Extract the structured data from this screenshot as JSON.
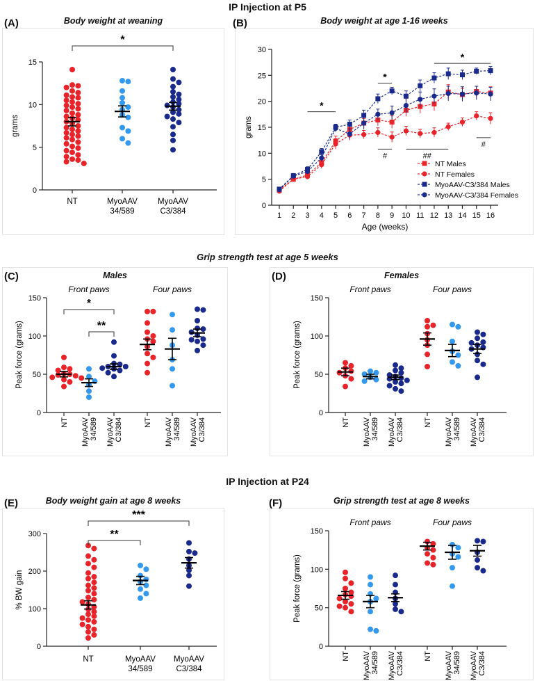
{
  "figure": {
    "title_top": "IP Injection at P5",
    "title_grip5": "Grip strength test at age 5 weeks",
    "title_p24": "IP Injection at P24"
  },
  "colors": {
    "nt": "#e8242a",
    "myo34": "#3399ee",
    "myoC3": "#1a2a8c",
    "axis": "#222222"
  },
  "chart_data": [
    {
      "id": "A",
      "label": "(A)",
      "type": "scatter",
      "title": "Body weight at weaning",
      "xlabel": "",
      "ylabel": "grams",
      "ylim": [
        0,
        15
      ],
      "yticks": [
        0,
        5,
        10,
        15
      ],
      "categories": [
        "NT",
        "MyoAAV\n34/589",
        "MyoAAV\nC3/384"
      ],
      "colors": [
        "nt",
        "myo34",
        "myoC3"
      ],
      "means": [
        8.0,
        9.2,
        9.8
      ],
      "sems": [
        0.5,
        0.65,
        0.45
      ],
      "points": [
        [
          14.1,
          12.3,
          12.2,
          12.0,
          11.6,
          11.4,
          11.1,
          10.9,
          10.8,
          10.5,
          10.3,
          10.1,
          9.9,
          9.7,
          9.5,
          9.3,
          9.0,
          8.8,
          8.6,
          8.4,
          8.2,
          8.0,
          7.8,
          7.5,
          7.3,
          7.1,
          6.9,
          6.7,
          6.5,
          6.3,
          6.1,
          5.9,
          5.6,
          5.4,
          5.1,
          4.9,
          4.6,
          4.4,
          4.1,
          3.9,
          3.6,
          3.3,
          3.1,
          3.5
        ],
        [
          12.8,
          12.7,
          11.6,
          10.8,
          10.2,
          9.7,
          9.4,
          8.8,
          8.5,
          7.3,
          6.9,
          6.0,
          5.5
        ],
        [
          14.1,
          13.0,
          12.6,
          12.1,
          11.5,
          11.2,
          10.9,
          10.6,
          10.3,
          10.1,
          9.9,
          9.7,
          9.4,
          9.1,
          8.9,
          8.6,
          8.3,
          7.9,
          7.4,
          6.5,
          5.8,
          4.7
        ]
      ],
      "sig": [
        {
          "from": 0,
          "to": 2,
          "label": "*"
        }
      ]
    },
    {
      "id": "B",
      "label": "(B)",
      "type": "line",
      "title": "Body weight at age 1-16 weeks",
      "xlabel": "Age (weeks)",
      "ylabel": "grams",
      "ylim": [
        0,
        30
      ],
      "yticks": [
        0,
        5,
        10,
        15,
        20,
        25,
        30
      ],
      "x": [
        1,
        2,
        3,
        4,
        5,
        6,
        7,
        8,
        9,
        10,
        11,
        12,
        13,
        14,
        15,
        16
      ],
      "series": [
        {
          "name": "NT Males",
          "color": "nt",
          "marker": "square",
          "values": [
            2.9,
            5.0,
            5.8,
            8.2,
            12.3,
            14.6,
            15.8,
            16.4,
            16.0,
            18.3,
            19.0,
            19.5,
            21.8,
            21.3,
            21.9,
            21.6
          ],
          "errors": [
            0.3,
            0.4,
            0.5,
            0.8,
            1.0,
            1.0,
            0.9,
            1.1,
            1.2,
            1.2,
            1.3,
            1.3,
            1.4,
            1.2,
            1.0,
            1.2
          ]
        },
        {
          "name": "NT Females",
          "color": "nt",
          "marker": "circle",
          "values": [
            2.7,
            5.0,
            5.5,
            7.8,
            11.8,
            13.5,
            13.6,
            14.0,
            13.1,
            14.3,
            13.8,
            14.0,
            15.1,
            16.0,
            17.2,
            16.7
          ],
          "errors": [
            0.3,
            0.4,
            0.5,
            0.7,
            1.0,
            1.0,
            0.8,
            0.9,
            1.0,
            0.9,
            0.8,
            0.9,
            0.7,
            0.8,
            0.8,
            1.1
          ]
        },
        {
          "name": "MyoAAV-C3/384 Males",
          "color": "myoC3",
          "marker": "square",
          "values": [
            3.1,
            5.7,
            6.9,
            10.3,
            15.0,
            15.6,
            17.3,
            20.5,
            22.0,
            21.0,
            23.0,
            24.5,
            25.3,
            25.1,
            25.8,
            25.9
          ],
          "errors": [
            0.3,
            0.4,
            0.5,
            0.6,
            0.6,
            0.8,
            1.0,
            0.9,
            0.7,
            1.0,
            1.1,
            1.0,
            1.1,
            0.9,
            0.6,
            0.8
          ]
        },
        {
          "name": "MyoAAV-C3/384 Females",
          "color": "myoC3",
          "marker": "circle",
          "values": [
            3.0,
            5.6,
            6.5,
            9.1,
            14.8,
            13.7,
            15.8,
            17.5,
            17.8,
            19.2,
            20.4,
            21.0,
            21.5,
            21.4,
            21.6,
            21.4
          ],
          "errors": [
            0.3,
            0.4,
            0.5,
            0.6,
            0.7,
            1.0,
            1.2,
            1.0,
            1.3,
            1.4,
            1.4,
            1.4,
            1.4,
            1.4,
            1.3,
            1.3
          ]
        }
      ],
      "annotations": [
        {
          "label": "*",
          "x1": 3,
          "x2": 5,
          "y": 18.0,
          "above": true
        },
        {
          "label": "*",
          "x1": 8,
          "x2": 9,
          "y": 23.5,
          "above": true
        },
        {
          "label": "*",
          "x1": 12,
          "x2": 16,
          "y": 27.3,
          "above": true
        },
        {
          "label": "#",
          "x1": 8,
          "x2": 9,
          "y": 10.8,
          "above": false
        },
        {
          "label": "##",
          "x1": 10,
          "x2": 13,
          "y": 10.8,
          "above": false
        },
        {
          "label": "#",
          "x1": 15,
          "x2": 16,
          "y": 13.0,
          "above": false
        }
      ],
      "legend_position": "bottom-right"
    },
    {
      "id": "C",
      "label": "(C)",
      "type": "scatter",
      "title": "Males",
      "ylabel": "Peak force (grams)",
      "ylim": [
        0,
        150
      ],
      "yticks": [
        0,
        50,
        100,
        150
      ],
      "group_labels": [
        "Front paws",
        "Four paws"
      ],
      "categories": [
        "NT",
        "MyoAAV\n34/589",
        "MyoAAV\nC3/384",
        "NT",
        "MyoAAV\n34/589",
        "MyoAAV\nC3/384"
      ],
      "colors": [
        "nt",
        "myo34",
        "myoC3",
        "nt",
        "myo34",
        "myoC3"
      ],
      "means": [
        50,
        39,
        60,
        89,
        83,
        104
      ],
      "sems": [
        3.5,
        5,
        3.5,
        7,
        14,
        5
      ],
      "points": [
        [
          72,
          59,
          57,
          55,
          51,
          50,
          49,
          48,
          46,
          45,
          43,
          40,
          34
        ],
        [
          57,
          47,
          41,
          36,
          28,
          20
        ],
        [
          92,
          74,
          64,
          63,
          60,
          60,
          58,
          57,
          55,
          52,
          47
        ],
        [
          132,
          132,
          117,
          105,
          100,
          96,
          93,
          86,
          77,
          72,
          64,
          52
        ],
        [
          128,
          108,
          88,
          69,
          57,
          35
        ],
        [
          135,
          134,
          120,
          110,
          109,
          105,
          101,
          96,
          95,
          93,
          88,
          81
        ]
      ],
      "sig": [
        {
          "from": 0,
          "to": 2,
          "label": "*",
          "level": 0
        },
        {
          "from": 1,
          "to": 2,
          "label": "**",
          "level": 1
        }
      ]
    },
    {
      "id": "D",
      "label": "(D)",
      "type": "scatter",
      "title": "Females",
      "ylabel": "Peak force (grams)",
      "ylim": [
        0,
        150
      ],
      "yticks": [
        0,
        50,
        100,
        150
      ],
      "group_labels": [
        "Front paws",
        "Four paws"
      ],
      "categories": [
        "NT",
        "MyoAAV\n34/589",
        "MyoAAV\nC3/384",
        "NT",
        "MyoAAV\n34/589",
        "MyoAAV\nC3/384"
      ],
      "colors": [
        "nt",
        "myo34",
        "myoC3",
        "nt",
        "myo34",
        "myoC3"
      ],
      "means": [
        53,
        47,
        46,
        96,
        81,
        83
      ],
      "sems": [
        5,
        3,
        3,
        8,
        8,
        6
      ],
      "points": [
        [
          65,
          61,
          58,
          54,
          52,
          48,
          44,
          34
        ],
        [
          54,
          52,
          50,
          46,
          43,
          41
        ],
        [
          62,
          58,
          55,
          52,
          49,
          47,
          45,
          44,
          42,
          40,
          38,
          35,
          31,
          28
        ],
        [
          120,
          114,
          112,
          103,
          95,
          88,
          76,
          60
        ],
        [
          115,
          112,
          93,
          80,
          75,
          66,
          61
        ],
        [
          105,
          102,
          97,
          92,
          91,
          88,
          85,
          83,
          76,
          68,
          63,
          46
        ]
      ],
      "sig": []
    },
    {
      "id": "E",
      "label": "(E)",
      "type": "scatter",
      "title": "Body weight gain at age 8 weeks",
      "ylabel": "% BW gain",
      "ylim": [
        0,
        300
      ],
      "yticks": [
        0,
        100,
        200,
        300
      ],
      "categories": [
        "NT",
        "MyoAAV\n34/589",
        "MyoAAV\nC3/384"
      ],
      "colors": [
        "nt",
        "myo34",
        "myoC3"
      ],
      "means": [
        110,
        175,
        222
      ],
      "sems": [
        11,
        11,
        14
      ],
      "points": [
        [
          268,
          260,
          240,
          230,
          220,
          210,
          195,
          185,
          180,
          170,
          162,
          155,
          148,
          140,
          130,
          124,
          118,
          112,
          105,
          98,
          92,
          85,
          80,
          75,
          70,
          65,
          58,
          52,
          45,
          38,
          30,
          22
        ],
        [
          215,
          205,
          188,
          178,
          172,
          162,
          152,
          140,
          128
        ],
        [
          275,
          252,
          248,
          232,
          215,
          202,
          188,
          160
        ]
      ],
      "sig": [
        {
          "from": 0,
          "to": 2,
          "label": "***",
          "level": 0
        },
        {
          "from": 0,
          "to": 1,
          "label": "**",
          "level": 1
        }
      ]
    },
    {
      "id": "F",
      "label": "(F)",
      "type": "scatter",
      "title": "Grip strength test at age 8 weeks",
      "ylabel": "Peak force (grams)",
      "ylim": [
        0,
        150
      ],
      "yticks": [
        0,
        50,
        100,
        150
      ],
      "group_labels": [
        "Front paws",
        "Four paws"
      ],
      "categories": [
        "NT",
        "MyoAAV\n34/589",
        "MyoAAV\nC3/384",
        "NT",
        "MyoAAV\n34/589",
        "MyoAAV\nC3/384"
      ],
      "colors": [
        "nt",
        "myo34",
        "myoC3",
        "nt",
        "myo34",
        "myoC3"
      ],
      "means": [
        66,
        58,
        63,
        130,
        122,
        124
      ],
      "sems": [
        5,
        8,
        5,
        5,
        9,
        7
      ],
      "points": [
        [
          96,
          88,
          82,
          75,
          70,
          67,
          65,
          62,
          58,
          55,
          52,
          50,
          45
        ],
        [
          90,
          80,
          68,
          62,
          58,
          45,
          22,
          20
        ],
        [
          92,
          80,
          70,
          62,
          55,
          48,
          45
        ],
        [
          136,
          133,
          128,
          125,
          120,
          115,
          108,
          106
        ],
        [
          132,
          128,
          120,
          116,
          102,
          78
        ],
        [
          137,
          136,
          122,
          112,
          102,
          98
        ]
      ],
      "sig": []
    }
  ]
}
